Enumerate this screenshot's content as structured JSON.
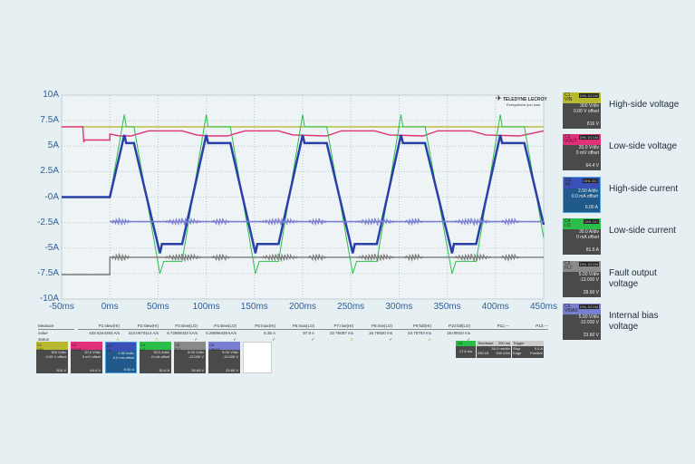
{
  "chart_data": {
    "type": "line",
    "xlim": [
      -50,
      450
    ],
    "ylim": [
      -10,
      10
    ],
    "grid": true,
    "x_ticks": [
      "-50ms",
      "0ms",
      "50ms",
      "100ms",
      "150ms",
      "200ms",
      "250ms",
      "300ms",
      "350ms",
      "400ms",
      "450ms"
    ],
    "x_tick_values": [
      -50,
      0,
      50,
      100,
      150,
      200,
      250,
      300,
      350,
      400,
      450
    ],
    "y_ticks": [
      "10A",
      "7.5A",
      "5A",
      "2.5A",
      "-0A",
      "-2.5A",
      "-5A",
      "-7.5A",
      "-10A"
    ],
    "y_tick_values": [
      10,
      7.5,
      5,
      2.5,
      0,
      -2.5,
      -5,
      -7.5,
      -10
    ],
    "series": [
      {
        "channel": "C1",
        "color": "#b8b830",
        "points": [
          [
            -50,
            6.9
          ],
          [
            450,
            6.9
          ]
        ]
      },
      {
        "channel": "C2",
        "color": "#e0307a",
        "points": [
          [
            -50,
            6.9
          ],
          [
            -28,
            6.9
          ],
          [
            -27,
            5.4
          ],
          [
            -26,
            5.6
          ],
          [
            0,
            5.6
          ],
          [
            0,
            6.2
          ],
          [
            10,
            6.0
          ],
          [
            22,
            6.0
          ],
          [
            40,
            6.5
          ],
          [
            75,
            6.5
          ],
          [
            90,
            6.1
          ],
          [
            100,
            6.0
          ],
          [
            122,
            6.0
          ],
          [
            140,
            6.5
          ],
          [
            175,
            6.5
          ],
          [
            190,
            6.1
          ],
          [
            225,
            6.0
          ],
          [
            240,
            6.5
          ],
          [
            275,
            6.5
          ],
          [
            290,
            6.1
          ],
          [
            325,
            6.0
          ],
          [
            340,
            6.5
          ],
          [
            375,
            6.5
          ],
          [
            390,
            6.1
          ],
          [
            425,
            6.0
          ],
          [
            450,
            6.5
          ]
        ]
      },
      {
        "channel": "C4",
        "color": "#2bbf4a",
        "points": [
          [
            0,
            0
          ],
          [
            15,
            8.1
          ],
          [
            17,
            6.9
          ],
          [
            25,
            6.9
          ],
          [
            52,
            -7.5
          ],
          [
            56,
            -6.3
          ],
          [
            75,
            -6.3
          ],
          [
            100,
            8.1
          ],
          [
            102,
            6.9
          ],
          [
            125,
            6.9
          ],
          [
            151,
            -7.5
          ],
          [
            155,
            -6.3
          ],
          [
            175,
            -6.3
          ],
          [
            200,
            8.1
          ],
          [
            202,
            6.9
          ],
          [
            225,
            6.9
          ],
          [
            252,
            -7.5
          ],
          [
            256,
            -6.3
          ],
          [
            277,
            -6.3
          ],
          [
            302,
            8.1
          ],
          [
            304,
            6.9
          ],
          [
            327,
            6.9
          ],
          [
            355,
            -7.5
          ],
          [
            359,
            -6.3
          ],
          [
            380,
            -6.3
          ],
          [
            405,
            8.1
          ],
          [
            407,
            6.9
          ],
          [
            430,
            6.9
          ],
          [
            450,
            -4.0
          ]
        ]
      },
      {
        "channel": "C3",
        "color": "#2a3fa8",
        "points": [
          [
            -50,
            0
          ],
          [
            0,
            0
          ],
          [
            15,
            6.1
          ],
          [
            17,
            5.3
          ],
          [
            25,
            5.3
          ],
          [
            52,
            -5.5
          ],
          [
            54,
            -4.6
          ],
          [
            75,
            -4.6
          ],
          [
            100,
            6.1
          ],
          [
            102,
            5.3
          ],
          [
            125,
            5.3
          ],
          [
            151,
            -5.5
          ],
          [
            153,
            -4.6
          ],
          [
            175,
            -4.6
          ],
          [
            200,
            6.1
          ],
          [
            202,
            5.3
          ],
          [
            225,
            5.3
          ],
          [
            252,
            -5.5
          ],
          [
            254,
            -4.6
          ],
          [
            277,
            -4.6
          ],
          [
            302,
            6.1
          ],
          [
            304,
            5.3
          ],
          [
            327,
            5.3
          ],
          [
            355,
            -5.5
          ],
          [
            357,
            -4.6
          ],
          [
            380,
            -4.6
          ],
          [
            405,
            6.1
          ],
          [
            407,
            5.3
          ],
          [
            430,
            5.3
          ],
          [
            450,
            -2.7
          ]
        ]
      },
      {
        "channel": "C6",
        "color": "#7a7ed0",
        "points": [
          [
            0,
            -2.4
          ],
          [
            450,
            -2.4
          ]
        ],
        "noise_bursts": [
          [
            0,
            22
          ],
          [
            55,
            97
          ],
          [
            105,
            125
          ],
          [
            155,
            197
          ],
          [
            205,
            225
          ],
          [
            255,
            297
          ],
          [
            305,
            325
          ],
          [
            355,
            397
          ],
          [
            405,
            425
          ]
        ]
      },
      {
        "channel": "C5",
        "color": "#7a7a7a",
        "points": [
          [
            -50,
            -7.6
          ],
          [
            0,
            -7.6
          ],
          [
            0,
            -5.9
          ],
          [
            450,
            -5.9
          ]
        ],
        "noise_bursts": [
          [
            0,
            22
          ],
          [
            55,
            97
          ],
          [
            105,
            125
          ],
          [
            155,
            197
          ],
          [
            205,
            225
          ],
          [
            255,
            297
          ],
          [
            305,
            325
          ],
          [
            355,
            397
          ],
          [
            405,
            425
          ]
        ]
      }
    ]
  },
  "logo": {
    "brand": "TELEDYNE LECROY",
    "tagline": "Everywhere you look"
  },
  "measure": {
    "row_labels": [
      "Measure",
      "value",
      "status"
    ],
    "columns": [
      {
        "name": "P1:slew(HI)",
        "value": "432.6244383 A/s",
        "status": "⚠",
        "warn": true
      },
      {
        "name": "P2:slew(HI)",
        "value": "413.0670114 A/s",
        "status": "⚠",
        "warn": true
      },
      {
        "name": "P3:slew(LO)",
        "value": "6.72869332 kA/s",
        "status": "✔",
        "warn": false
      },
      {
        "name": "P4:slew(LO)",
        "value": "6.26896438 kA/s",
        "status": "✔",
        "warn": false
      },
      {
        "name": "P5:max(HI)",
        "value": "6.36 A",
        "status": "✔",
        "warn": false
      },
      {
        "name": "P6:max(LO)",
        "value": "97.9 A",
        "status": "✔",
        "warn": false
      },
      {
        "name": "P7:rise(HI)",
        "value": "22.75087 ms",
        "status": "⚠",
        "warn": true
      },
      {
        "name": "P8:rise(LO)",
        "value": "15.75830 ms",
        "status": "✔",
        "warn": false
      },
      {
        "name": "P9:fall(HI)",
        "value": "23.76703 ms",
        "status": "⚠",
        "warn": true
      },
      {
        "name": "P10:fall(LO)",
        "value": "18.00010 ms",
        "status": "✔",
        "warn": false
      },
      {
        "name": "P11:---",
        "value": "",
        "status": "",
        "warn": false
      },
      {
        "name": "P12:---",
        "value": "",
        "status": "",
        "warn": false
      }
    ]
  },
  "channels": [
    {
      "id": "C1",
      "name": "VIN",
      "color": "#b8b830",
      "scale": "300 V/div",
      "offset": "0.00 V offset",
      "value": "816 V",
      "label": "High-side voltage",
      "badge": "DHL DC1M"
    },
    {
      "id": "C2",
      "name": "VOUT",
      "color": "#e0307a",
      "scale": "20.0 V/div",
      "offset": "0 mV offset",
      "value": "64.4 V",
      "label": "Low-side voltage",
      "badge": "DHL DC1M"
    },
    {
      "id": "C3",
      "name": "HI",
      "color": "#3a4fb8",
      "scale": "2.50 A/div",
      "offset": "0.0 mA offset",
      "value": "6.00 A",
      "label": "High-side current",
      "badge": "DHL DC"
    },
    {
      "id": "C4",
      "name": "LO",
      "color": "#2bbf4a",
      "scale": "30.0 A/div",
      "offset": "0 mA offset",
      "value": "81.6 A",
      "label": "Low-side current",
      "badge": "DHL DC"
    },
    {
      "id": "C5",
      "name": "FLT",
      "color": "#8a8a8a",
      "scale": "5.00 V/div",
      "offset": "-13.000 V",
      "value": "28.60 V",
      "label": "Fault output voltage",
      "badge": "DHL DC1M"
    },
    {
      "id": "C6",
      "name": "VBIAS",
      "color": "#7a7ed0",
      "scale": "5.00 V/div",
      "offset": "-10.000 V",
      "value": "23.60 V",
      "label": "Internal bias voltage",
      "badge": "DHL DC1M"
    }
  ],
  "timebase": {
    "trigger_ch": "C4",
    "trigger_val": "17.6 ms",
    "tb_label": "Timebase",
    "tb_val": "200 ms",
    "scale": "50.0 ms/div",
    "samples": "250 kS",
    "rate": "500 kS/s",
    "trigger_label": "Trigger",
    "mode": "Stop",
    "level": "0.0 A",
    "type": "Edge",
    "slope": "Positive"
  }
}
